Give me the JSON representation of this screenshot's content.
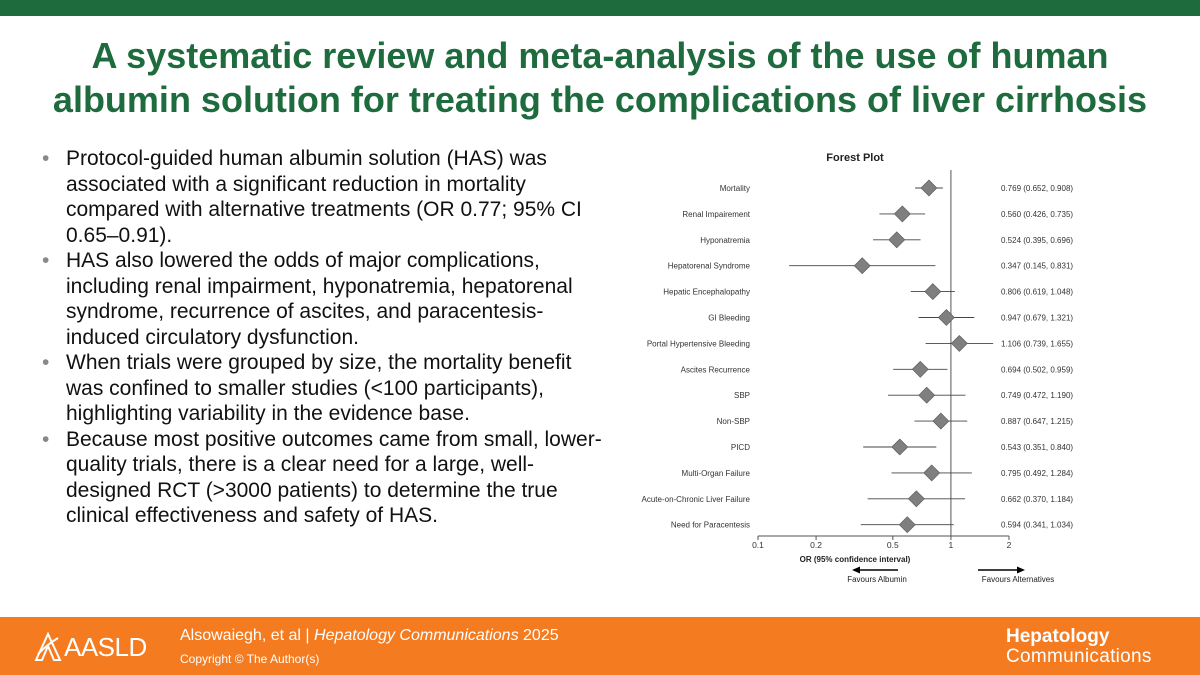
{
  "title": {
    "line1": "A systematic review and meta-analysis of the use of human",
    "line2": "albumin solution for treating the complications of liver cirrhosis"
  },
  "bullets": [
    "Protocol-guided human albumin solution (HAS) was associated with a significant reduction in mortality compared with alternative treatments (OR 0.77; 95% CI 0.65–0.91).",
    "HAS also lowered the odds of major complications, including renal impairment, hyponatremia, hepatorenal syndrome, recurrence of ascites, and paracentesis-induced circulatory dysfunction.",
    "When trials were grouped by size, the mortality benefit was confined to smaller studies (<100 participants), highlighting variability in the evidence base.",
    "Because most positive outcomes came from small, lower-quality trials, there is a clear need for a large, well-designed RCT (>3000 patients) to determine the true clinical effectiveness and safety of HAS."
  ],
  "chart_data": {
    "type": "scatter",
    "title": "Forest Plot",
    "xlabel": "OR (95% confidence interval)",
    "xscale": "log",
    "xlim": [
      0.1,
      2
    ],
    "xticks": [
      0.1,
      0.2,
      0.5,
      1,
      2
    ],
    "xtick_labels": [
      "0.1",
      "0.2",
      "0.5",
      "1",
      "2"
    ],
    "reference_line": 1,
    "favours_left": "Favours Albumin",
    "favours_right": "Favours Alternatives",
    "marker_color": "#7f7f7f",
    "rows": [
      {
        "label": "Mortality",
        "or": 0.769,
        "lo": 0.652,
        "hi": 0.908,
        "text": "0.769 (0.652, 0.908)"
      },
      {
        "label": "Renal Impairement",
        "or": 0.56,
        "lo": 0.426,
        "hi": 0.735,
        "text": "0.560 (0.426, 0.735)"
      },
      {
        "label": "Hyponatremia",
        "or": 0.524,
        "lo": 0.395,
        "hi": 0.696,
        "text": "0.524 (0.395, 0.696)"
      },
      {
        "label": "Hepatorenal Syndrome",
        "or": 0.347,
        "lo": 0.145,
        "hi": 0.831,
        "text": "0.347 (0.145, 0.831)"
      },
      {
        "label": "Hepatic Encephalopathy",
        "or": 0.806,
        "lo": 0.619,
        "hi": 1.048,
        "text": "0.806 (0.619, 1.048)"
      },
      {
        "label": "GI Bleeding",
        "or": 0.947,
        "lo": 0.679,
        "hi": 1.321,
        "text": "0.947 (0.679, 1.321)"
      },
      {
        "label": "Portal Hypertensive Bleeding",
        "or": 1.106,
        "lo": 0.739,
        "hi": 1.655,
        "text": "1.106 (0.739, 1.655)"
      },
      {
        "label": "Ascites Recurrence",
        "or": 0.694,
        "lo": 0.502,
        "hi": 0.959,
        "text": "0.694 (0.502, 0.959)"
      },
      {
        "label": "SBP",
        "or": 0.749,
        "lo": 0.472,
        "hi": 1.19,
        "text": "0.749 (0.472, 1.190)"
      },
      {
        "label": "Non-SBP",
        "or": 0.887,
        "lo": 0.647,
        "hi": 1.215,
        "text": "0.887 (0.647, 1.215)"
      },
      {
        "label": "PICD",
        "or": 0.543,
        "lo": 0.351,
        "hi": 0.84,
        "text": "0.543 (0.351, 0.840)"
      },
      {
        "label": "Multi-Organ Failure",
        "or": 0.795,
        "lo": 0.492,
        "hi": 1.284,
        "text": "0.795 (0.492, 1.284)"
      },
      {
        "label": "Acute-on-Chronic Liver Failure",
        "or": 0.662,
        "lo": 0.37,
        "hi": 1.184,
        "text": "0.662 (0.370, 1.184)"
      },
      {
        "label": "Need for Paracentesis",
        "or": 0.594,
        "lo": 0.341,
        "hi": 1.034,
        "text": "0.594 (0.341, 1.034)"
      }
    ]
  },
  "footer": {
    "logo_text": "AASLD",
    "authors": "Alsowaiegh, et al",
    "separator": "|",
    "journal": "Hepatology Communications",
    "year": "2025",
    "copyright": "Copyright © The Author(s)",
    "journal_logo_line1": "Hepatology",
    "journal_logo_line2": "Communications",
    "background_color": "#f47b20"
  },
  "colors": {
    "title_green": "#1e6b3e",
    "top_bar_green": "#1e6b3e"
  }
}
